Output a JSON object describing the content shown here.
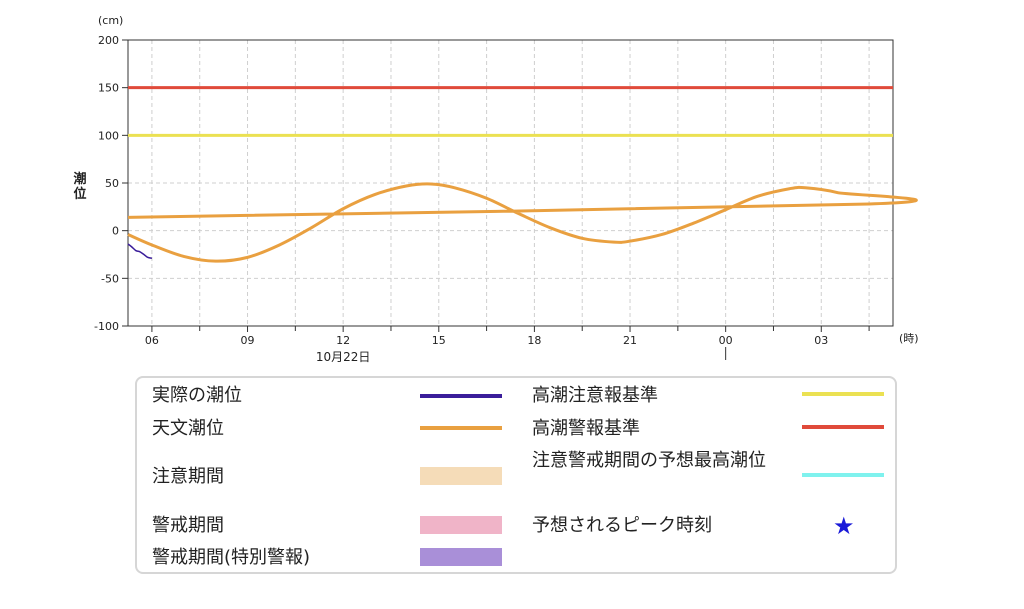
{
  "chart_data": {
    "type": "line",
    "y_unit": "(cm)",
    "x_unit": "(時)",
    "ylabel": "潮位",
    "ylim": [
      -100,
      200
    ],
    "y_ticks": [
      200,
      150,
      100,
      50,
      0,
      -50,
      -100
    ],
    "x_ticks": [
      "06",
      "09",
      "12",
      "15",
      "18",
      "21",
      "00",
      "03"
    ],
    "date_label": "10月22日",
    "grid": true,
    "reference_lines": [
      {
        "name": "高潮警報基準",
        "value": 150,
        "color": "#e04a3a"
      },
      {
        "name": "高潮注意報基準",
        "value": 100,
        "color": "#ebe152"
      }
    ],
    "series": [
      {
        "name": "天文潮位",
        "color": "#e9a040",
        "x": [
          "05:15",
          "06:00",
          "07:00",
          "08:00",
          "09:00",
          "10:00",
          "11:00",
          "12:00",
          "13:00",
          "14:00",
          "14:45",
          "15:30",
          "16:30",
          "17:30",
          "18:30",
          "19:30",
          "20:30",
          "21:00",
          "22:00",
          "23:00",
          "00:00",
          "01:00",
          "02:00",
          "02:30",
          "03:30",
          "04:30",
          "05:15"
        ],
        "y": [
          -4,
          -15,
          -27,
          -32,
          -28,
          -15,
          3,
          23,
          38,
          47,
          49,
          45,
          34,
          18,
          3,
          -8,
          -12,
          -11,
          -4,
          8,
          22,
          36,
          44,
          45,
          40,
          28,
          14
        ]
      },
      {
        "name": "実際の潮位",
        "color": "#3a1d9a",
        "x": [
          "05:15",
          "05:22",
          "05:30",
          "05:37",
          "05:45",
          "05:52",
          "06:00"
        ],
        "y": [
          -14,
          -17,
          -21,
          -22,
          -25,
          -28,
          -29
        ]
      }
    ]
  },
  "legend": {
    "items": [
      {
        "label": "実際の潮位",
        "kind": "line",
        "color": "#3a1d9a"
      },
      {
        "label": "天文潮位",
        "kind": "line",
        "color": "#e9a040"
      },
      {
        "label": "注意期間",
        "kind": "box",
        "color": "#f5dcb8"
      },
      {
        "label": "警戒期間",
        "kind": "box",
        "color": "#f0b4c8"
      },
      {
        "label": "警戒期間(特別警報)",
        "kind": "box",
        "color": "#a98fd8"
      },
      {
        "label": "高潮注意報基準",
        "kind": "line",
        "color": "#ebe152"
      },
      {
        "label": "高潮警報基準",
        "kind": "line",
        "color": "#e04a3a"
      },
      {
        "label": "注意警戒期間の予想最高潮位",
        "kind": "line",
        "color": "#7ff2ee"
      },
      {
        "label": "予想されるピーク時刻",
        "kind": "star",
        "color": "#1a1ad8",
        "symbol": "★"
      }
    ]
  }
}
